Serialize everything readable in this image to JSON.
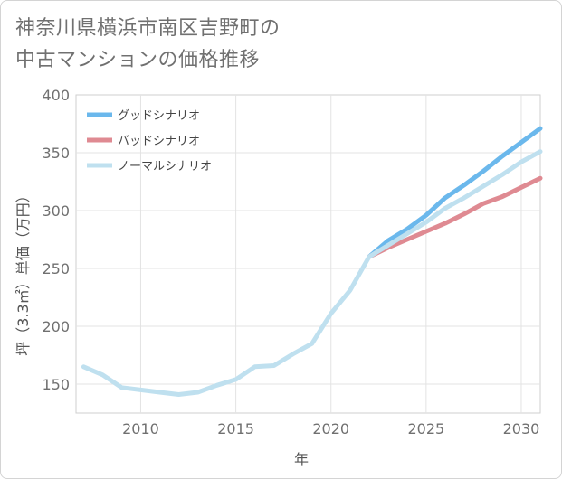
{
  "title_line1": "神奈川県横浜市南区吉野町の",
  "title_line2": "中古マンションの価格推移",
  "chart_data": {
    "type": "line",
    "xlabel": "年",
    "ylabel": "坪（3.3㎡）単価（万円）",
    "xlim": [
      2006.6,
      2031
    ],
    "ylim": [
      125,
      400
    ],
    "xticks": [
      2010,
      2015,
      2020,
      2025,
      2030
    ],
    "yticks": [
      150,
      200,
      250,
      300,
      350,
      400
    ],
    "grid": true,
    "legend_position": "top-left",
    "series": [
      {
        "name": "グッドシナリオ",
        "color": "#6bb8ec",
        "x": [
          2022,
          2023,
          2024,
          2025,
          2026,
          2027,
          2028,
          2029,
          2030,
          2031
        ],
        "y": [
          260,
          274,
          284,
          296,
          311,
          322,
          334,
          347,
          359,
          371
        ]
      },
      {
        "name": "バッドシナリオ",
        "color": "#df8a92",
        "x": [
          2022,
          2023,
          2024,
          2025,
          2026,
          2027,
          2028,
          2029,
          2030,
          2031
        ],
        "y": [
          260,
          268,
          275,
          282,
          289,
          297,
          306,
          312,
          320,
          328
        ]
      },
      {
        "name": "ノーマルシナリオ",
        "color": "#bfe0ef",
        "x": [
          2007,
          2008,
          2009,
          2010,
          2011,
          2012,
          2013,
          2014,
          2015,
          2016,
          2017,
          2018,
          2019,
          2020,
          2021,
          2022,
          2023,
          2024,
          2025,
          2026,
          2027,
          2028,
          2029,
          2030,
          2031
        ],
        "y": [
          165,
          158,
          147,
          145,
          143,
          141,
          143,
          149,
          154,
          165,
          166,
          176,
          185,
          211,
          231,
          260,
          270,
          280,
          290,
          302,
          311,
          321,
          331,
          342,
          351
        ]
      }
    ]
  }
}
